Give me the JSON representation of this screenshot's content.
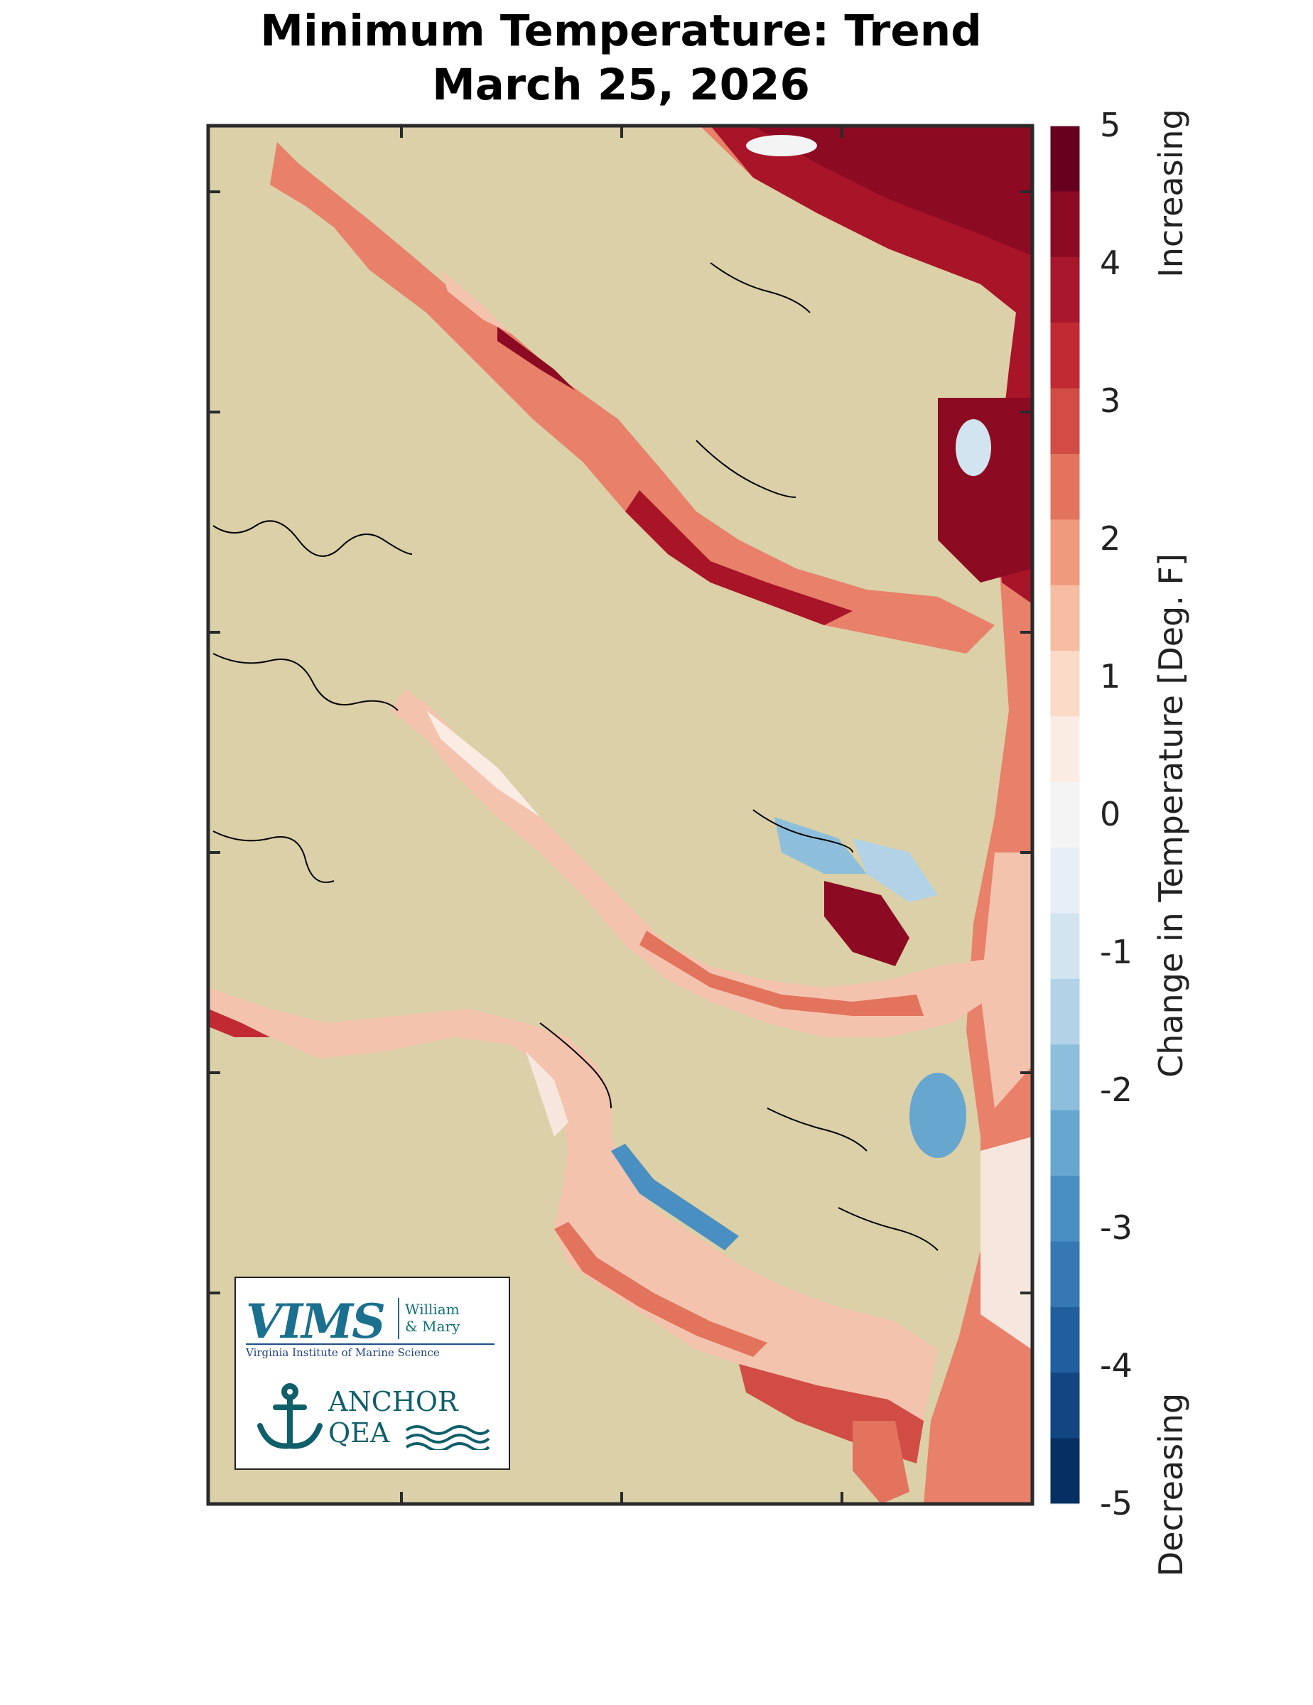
{
  "title_line1": "Minimum Temperature: Trend",
  "title_line2": "March 25, 2026",
  "colorbar": {
    "label": "Change in Temperature [Deg. F]",
    "top_label": "Increasing",
    "bottom_label": "Decreasing",
    "ticks": [
      "5",
      "4",
      "3",
      "2",
      "1",
      "0",
      "-1",
      "-2",
      "-3",
      "-4",
      "-5"
    ],
    "min": -5,
    "max": 5,
    "colors": [
      "#67001f",
      "#8c0a22",
      "#a8172b",
      "#c12a32",
      "#d04c44",
      "#e2735d",
      "#ef9a7d",
      "#f6bda3",
      "#fbd9c7",
      "#fbece3",
      "#f4f4f4",
      "#e8eef5",
      "#d1e4f0",
      "#b2d3e7",
      "#8dbfdd",
      "#66a6cf",
      "#4a8fc1",
      "#3578b3",
      "#215e9d",
      "#124683",
      "#053061"
    ]
  },
  "logos": {
    "vims": "VIMS",
    "wm_line1": "William",
    "wm_line2": "& Mary",
    "vims_subtitle": "Virginia Institute of Marine Science",
    "anchor_line1": "ANCHOR",
    "anchor_line2": "QEA"
  },
  "colors": {
    "land": "#dbd0a8",
    "frame": "#2a2a2a",
    "water_warm": "#e8806a",
    "water_hot": "#a81428",
    "water_cool": "#3e86c0",
    "water_neutral": "#f6e6de",
    "shoreline": "#000000"
  }
}
